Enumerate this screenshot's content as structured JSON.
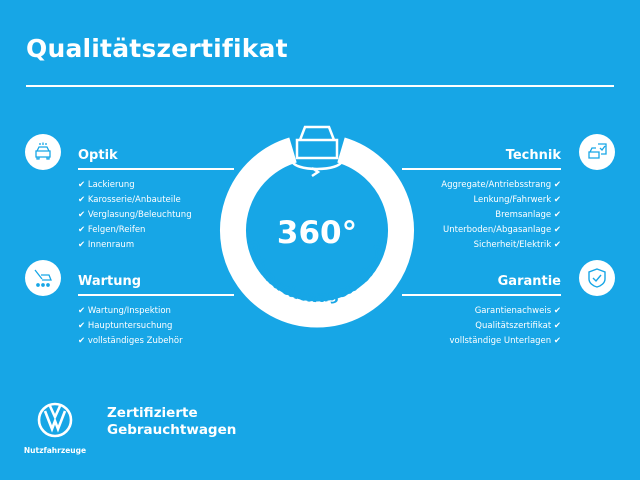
{
  "title": "Qualitätszertifikat",
  "colors": {
    "background": "#17a6e6",
    "foreground": "#ffffff"
  },
  "check_mark": "✔",
  "center": {
    "number": "360°",
    "label": "Gebrauchtwagen-Check",
    "icon": "car-rotate-icon"
  },
  "sections": {
    "optik": {
      "title": "Optik",
      "icon": "car-lights-icon",
      "items": [
        "Lackierung",
        "Karosserie/Anbauteile",
        "Verglasung/Beleuchtung",
        "Felgen/Reifen",
        "Innenraum"
      ]
    },
    "wartung": {
      "title": "Wartung",
      "icon": "car-service-icon",
      "items": [
        "Wartung/Inspektion",
        "Hauptuntersuchung",
        "vollständiges Zubehör"
      ]
    },
    "technik": {
      "title": "Technik",
      "icon": "car-checklist-icon",
      "items": [
        "Aggregate/Antriebsstrang",
        "Lenkung/Fahrwerk",
        "Bremsanlage",
        "Unterboden/Abgasanlage",
        "Sicherheit/Elektrik"
      ]
    },
    "garantie": {
      "title": "Garantie",
      "icon": "shield-check-icon",
      "items": [
        "Garantienachweis",
        "Qualitätszertifikat",
        "vollständige Unterlagen"
      ]
    }
  },
  "footer": {
    "brand": "Nutzfahrzeuge",
    "line1": "Zertifizierte",
    "line2": "Gebrauchtwagen"
  }
}
